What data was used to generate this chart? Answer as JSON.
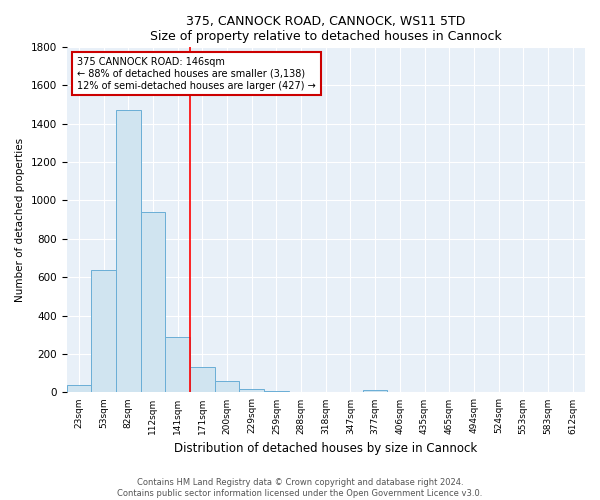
{
  "title1": "375, CANNOCK ROAD, CANNOCK, WS11 5TD",
  "title2": "Size of property relative to detached houses in Cannock",
  "xlabel": "Distribution of detached houses by size in Cannock",
  "ylabel": "Number of detached properties",
  "categories": [
    "23sqm",
    "53sqm",
    "82sqm",
    "112sqm",
    "141sqm",
    "171sqm",
    "200sqm",
    "229sqm",
    "259sqm",
    "288sqm",
    "318sqm",
    "347sqm",
    "377sqm",
    "406sqm",
    "435sqm",
    "465sqm",
    "494sqm",
    "524sqm",
    "553sqm",
    "583sqm",
    "612sqm"
  ],
  "values": [
    40,
    640,
    1470,
    940,
    290,
    135,
    58,
    18,
    5,
    0,
    0,
    0,
    12,
    0,
    0,
    0,
    0,
    0,
    0,
    0,
    0
  ],
  "bar_color": "#d0e4f0",
  "bar_edge_color": "#6aaed6",
  "red_line_x": 4.5,
  "annotation_text": "375 CANNOCK ROAD: 146sqm\n← 88% of detached houses are smaller (3,138)\n12% of semi-detached houses are larger (427) →",
  "annotation_box_color": "#ffffff",
  "annotation_border_color": "#cc0000",
  "footer1": "Contains HM Land Registry data © Crown copyright and database right 2024.",
  "footer2": "Contains public sector information licensed under the Open Government Licence v3.0.",
  "ylim": [
    0,
    1800
  ],
  "yticks": [
    0,
    200,
    400,
    600,
    800,
    1000,
    1200,
    1400,
    1600,
    1800
  ],
  "plot_background": "#e8f0f8"
}
